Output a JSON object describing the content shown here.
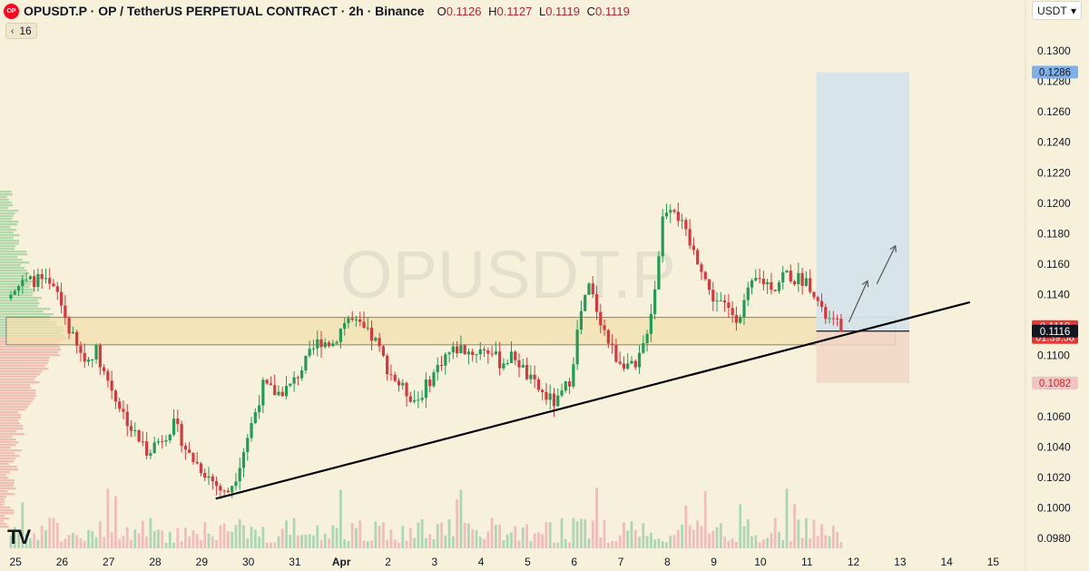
{
  "header": {
    "symbol_icon": "OP",
    "title": "OPUSDT.P · OP / TetherUS PERPETUAL CONTRACT · 2h · Binance",
    "ohlc": [
      {
        "label": "O",
        "value": "0.1126"
      },
      {
        "label": "H",
        "value": "0.1127"
      },
      {
        "label": "L",
        "value": "0.1119"
      },
      {
        "label": "C",
        "value": "0.1119"
      }
    ]
  },
  "indicator": {
    "chevron": "‹",
    "value": "16"
  },
  "currency": {
    "label": "USDT",
    "chevron": "▾"
  },
  "watermark": "OPUSDT.P",
  "logo_text": "TV",
  "colors": {
    "up": "#1f9d55",
    "down": "#d9363e",
    "bg": "#f7f1dc",
    "zone": "#f3dfae",
    "target": "#d3e3ec",
    "stop": "#f1d6c6"
  },
  "chart_data": {
    "type": "candlestick",
    "yaxis": {
      "ticks": [
        "0.1300",
        "0.1280",
        "0.1260",
        "0.1240",
        "0.1220",
        "0.1200",
        "0.1180",
        "0.1160",
        "0.1140",
        "0.1120",
        "0.1100",
        "0.1080",
        "0.1060",
        "0.1040",
        "0.1020",
        "0.1000",
        "0.0980"
      ],
      "range": [
        0.0978,
        0.1318
      ]
    },
    "xaxis": {
      "ticks": [
        {
          "label": "25",
          "day": 25
        },
        {
          "label": "26",
          "day": 26
        },
        {
          "label": "27",
          "day": 27
        },
        {
          "label": "28",
          "day": 28
        },
        {
          "label": "29",
          "day": 29
        },
        {
          "label": "30",
          "day": 30
        },
        {
          "label": "31",
          "day": 31
        },
        {
          "label": "Apr",
          "day": 32
        },
        {
          "label": "2",
          "day": 33
        },
        {
          "label": "3",
          "day": 34
        },
        {
          "label": "4",
          "day": 35
        },
        {
          "label": "5",
          "day": 36
        },
        {
          "label": "6",
          "day": 37
        },
        {
          "label": "7",
          "day": 38
        },
        {
          "label": "8",
          "day": 39
        },
        {
          "label": "9",
          "day": 40
        },
        {
          "label": "10",
          "day": 41
        },
        {
          "label": "11",
          "day": 42
        },
        {
          "label": "12",
          "day": 43
        },
        {
          "label": "13",
          "day": 44
        },
        {
          "label": "14",
          "day": 45
        },
        {
          "label": "15",
          "day": 46
        }
      ]
    },
    "price_path": [
      [
        24.8,
        0.113
      ],
      [
        25.0,
        0.1145
      ],
      [
        25.3,
        0.1148
      ],
      [
        25.6,
        0.115
      ],
      [
        26.0,
        0.114
      ],
      [
        26.2,
        0.112
      ],
      [
        26.4,
        0.1105
      ],
      [
        26.6,
        0.1095
      ],
      [
        26.8,
        0.1105
      ],
      [
        27.0,
        0.1088
      ],
      [
        27.3,
        0.1068
      ],
      [
        27.6,
        0.105
      ],
      [
        27.9,
        0.1038
      ],
      [
        28.2,
        0.1045
      ],
      [
        28.5,
        0.1055
      ],
      [
        28.8,
        0.1035
      ],
      [
        29.1,
        0.1025
      ],
      [
        29.4,
        0.1015
      ],
      [
        29.6,
        0.1008
      ],
      [
        29.8,
        0.102
      ],
      [
        30.1,
        0.105
      ],
      [
        30.4,
        0.108
      ],
      [
        30.7,
        0.1075
      ],
      [
        31.0,
        0.108
      ],
      [
        31.3,
        0.1095
      ],
      [
        31.6,
        0.111
      ],
      [
        31.9,
        0.1108
      ],
      [
        32.2,
        0.1125
      ],
      [
        32.5,
        0.1118
      ],
      [
        32.8,
        0.111
      ],
      [
        33.1,
        0.109
      ],
      [
        33.4,
        0.1078
      ],
      [
        33.7,
        0.107
      ],
      [
        34.0,
        0.1085
      ],
      [
        34.3,
        0.11
      ],
      [
        34.6,
        0.1105
      ],
      [
        34.9,
        0.1102
      ],
      [
        35.2,
        0.1105
      ],
      [
        35.5,
        0.1095
      ],
      [
        35.8,
        0.11
      ],
      [
        36.1,
        0.1085
      ],
      [
        36.4,
        0.1075
      ],
      [
        36.7,
        0.1068
      ],
      [
        37.0,
        0.1085
      ],
      [
        37.2,
        0.1125
      ],
      [
        37.4,
        0.1145
      ],
      [
        37.6,
        0.1128
      ],
      [
        37.8,
        0.111
      ],
      [
        38.0,
        0.1098
      ],
      [
        38.2,
        0.1095
      ],
      [
        38.4,
        0.109
      ],
      [
        38.6,
        0.111
      ],
      [
        38.8,
        0.114
      ],
      [
        39.0,
        0.1195
      ],
      [
        39.2,
        0.12
      ],
      [
        39.4,
        0.1185
      ],
      [
        39.6,
        0.117
      ],
      [
        39.8,
        0.116
      ],
      [
        40.0,
        0.114
      ],
      [
        40.2,
        0.1135
      ],
      [
        40.4,
        0.113
      ],
      [
        40.6,
        0.1125
      ],
      [
        40.8,
        0.114
      ],
      [
        41.0,
        0.115
      ],
      [
        41.2,
        0.1148
      ],
      [
        41.4,
        0.1145
      ],
      [
        41.6,
        0.1155
      ],
      [
        41.8,
        0.115
      ],
      [
        42.0,
        0.115
      ],
      [
        42.2,
        0.1145
      ],
      [
        42.4,
        0.1128
      ],
      [
        42.6,
        0.1122
      ],
      [
        42.8,
        0.1119
      ]
    ],
    "trendline": {
      "from": {
        "day": 29.3,
        "price": 0.1006
      },
      "to": {
        "day": 45.5,
        "price": 0.1135
      }
    },
    "zone": {
      "from_day": 24.8,
      "to_day": 43.9,
      "top": 0.1125,
      "bottom": 0.1107
    },
    "position": {
      "from_day": 42.2,
      "to_day": 44.2,
      "entry": 0.1116,
      "target": 0.1286,
      "stop": 0.1082
    },
    "arrows": [
      {
        "from": {
          "day": 42.9,
          "price": 0.1122
        },
        "to": {
          "day": 43.3,
          "price": 0.1149
        }
      },
      {
        "from": {
          "day": 43.5,
          "price": 0.1147
        },
        "to": {
          "day": 43.9,
          "price": 0.1172
        }
      }
    ],
    "price_labels": [
      {
        "name": "target",
        "value": "0.1286",
        "bg": "#7fb0e8",
        "color": "#131722"
      },
      {
        "name": "last",
        "value": "0.1119",
        "countdown": "01:39:58",
        "bg": "#e53935",
        "color": "#ffffff"
      },
      {
        "name": "entry",
        "value": "0.1116",
        "bg": "#131722",
        "color": "#ffffff"
      },
      {
        "name": "stop",
        "value": "0.1082",
        "bg": "#f2c5c5",
        "color": "#c62828"
      }
    ]
  }
}
